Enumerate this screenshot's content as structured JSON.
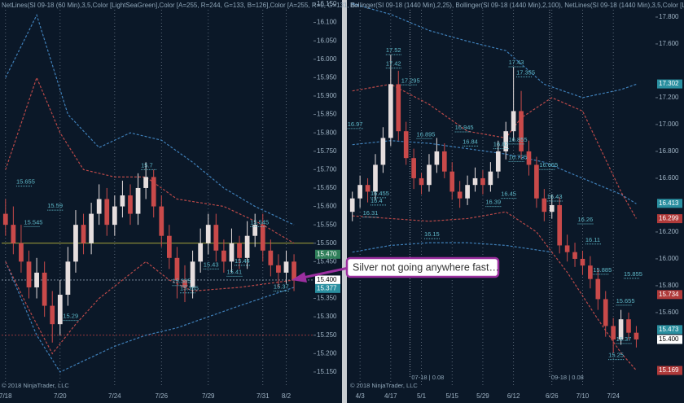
{
  "annotation": "Silver not going anywhere fast…",
  "chart_data": [
    {
      "type": "candlestick",
      "title": "NetLines(SI 09-18 (60 Min),3,5,Color [LightSeaGreen],Color [A=255, R=244, G=133, B=126],Color [A=255, R=0, G=131, B=",
      "copyright": "© 2018 NinjaTrader, LLC",
      "up_color": "#e6dede",
      "down_color": "#c94a4a",
      "xlim": [
        -0.5,
        39.5
      ],
      "ylim": [
        15.11,
        16.161
      ],
      "xticks": [
        {
          "value": 0,
          "label": "7/18"
        },
        {
          "value": 7,
          "label": "7/20"
        },
        {
          "value": 14,
          "label": "7/24"
        },
        {
          "value": 20,
          "label": "7/26"
        },
        {
          "value": 26,
          "label": "7/29"
        },
        {
          "value": 33,
          "label": "7/31"
        },
        {
          "value": 36,
          "label": "8/2"
        }
      ],
      "yticks": [
        {
          "value": 16.15,
          "label": "16.150"
        },
        {
          "value": 16.1,
          "label": "16.100"
        },
        {
          "value": 16.05,
          "label": "16.050"
        },
        {
          "value": 16,
          "label": "16.000"
        },
        {
          "value": 15.95,
          "label": "15.950"
        },
        {
          "value": 15.9,
          "label": "15.900"
        },
        {
          "value": 15.85,
          "label": "15.850"
        },
        {
          "value": 15.8,
          "label": "15.800"
        },
        {
          "value": 15.75,
          "label": "15.750"
        },
        {
          "value": 15.7,
          "label": "15.700"
        },
        {
          "value": 15.65,
          "label": "15.650"
        },
        {
          "value": 15.6,
          "label": "15.600"
        },
        {
          "value": 15.55,
          "label": "15.550"
        },
        {
          "value": 15.5,
          "label": "15.500"
        },
        {
          "value": 15.45,
          "label": "15.450"
        },
        {
          "value": 15.35,
          "label": "15.350"
        },
        {
          "value": 15.3,
          "label": "15.300"
        },
        {
          "value": 15.25,
          "label": "15.250"
        },
        {
          "value": 15.2,
          "label": "15.200"
        },
        {
          "value": 15.15,
          "label": "15.150"
        }
      ],
      "open": [
        15.58,
        15.55,
        15.5,
        15.45,
        15.38,
        15.42,
        15.33,
        15.28,
        15.36,
        15.45,
        15.55,
        15.5,
        15.58,
        15.62,
        15.55,
        15.6,
        15.63,
        15.58,
        15.65,
        15.68,
        15.6,
        15.52,
        15.46,
        15.4,
        15.38,
        15.45,
        15.5,
        15.55,
        15.48,
        15.45,
        15.5,
        15.46,
        15.52,
        15.55,
        15.48,
        15.44,
        15.42,
        15.45
      ],
      "high": [
        15.62,
        15.6,
        15.55,
        15.48,
        15.46,
        15.45,
        15.37,
        15.4,
        15.49,
        15.59,
        15.58,
        15.61,
        15.66,
        15.65,
        15.63,
        15.67,
        15.66,
        15.69,
        15.72,
        15.7,
        15.63,
        15.55,
        15.49,
        15.44,
        15.48,
        15.54,
        15.58,
        15.58,
        15.51,
        15.54,
        15.52,
        15.56,
        15.58,
        15.58,
        15.51,
        15.47,
        15.48,
        15.47
      ],
      "low": [
        15.52,
        15.47,
        15.42,
        15.35,
        15.35,
        15.3,
        15.23,
        15.25,
        15.33,
        15.42,
        15.47,
        15.47,
        15.55,
        15.52,
        15.52,
        15.57,
        15.55,
        15.55,
        15.62,
        15.57,
        15.49,
        15.43,
        15.35,
        15.34,
        15.35,
        15.42,
        15.47,
        15.45,
        15.42,
        15.42,
        15.43,
        15.43,
        15.49,
        15.45,
        15.41,
        15.38,
        15.39,
        15.37
      ],
      "close": [
        15.55,
        15.5,
        15.45,
        15.38,
        15.42,
        15.33,
        15.28,
        15.36,
        15.45,
        15.55,
        15.5,
        15.58,
        15.62,
        15.55,
        15.6,
        15.63,
        15.58,
        15.65,
        15.68,
        15.6,
        15.52,
        15.46,
        15.4,
        15.38,
        15.45,
        15.5,
        15.55,
        15.48,
        15.45,
        15.5,
        15.46,
        15.52,
        15.55,
        15.48,
        15.44,
        15.42,
        15.45,
        15.4
      ],
      "bands": [
        {
          "color": "#3f7fb8",
          "x": [
            0,
            4,
            8,
            12,
            16,
            20,
            24,
            28,
            32,
            37
          ],
          "values": [
            15.95,
            16.12,
            15.85,
            15.76,
            15.8,
            15.78,
            15.72,
            15.65,
            15.6,
            15.55
          ]
        },
        {
          "color": "#3f7fb8",
          "x": [
            0,
            4,
            7,
            10,
            14,
            18,
            22,
            26,
            30,
            37
          ],
          "values": [
            15.45,
            15.25,
            15.15,
            15.18,
            15.22,
            15.25,
            15.27,
            15.3,
            15.33,
            15.38
          ]
        },
        {
          "color": "#b84848",
          "x": [
            0,
            4,
            7,
            10,
            14,
            18,
            22,
            28,
            33,
            37
          ],
          "values": [
            15.7,
            15.95,
            15.8,
            15.7,
            15.68,
            15.68,
            15.62,
            15.6,
            15.55,
            15.5
          ]
        },
        {
          "color": "#b84848",
          "x": [
            0,
            3,
            6,
            9,
            12,
            18,
            21,
            24,
            30,
            37
          ],
          "values": [
            15.45,
            15.32,
            15.2,
            15.28,
            15.35,
            15.45,
            15.4,
            15.37,
            15.38,
            15.4
          ]
        }
      ],
      "reference_lines": [
        {
          "value": 15.5,
          "color": "#d8d040"
        },
        {
          "value": 15.25,
          "color": "#c04040"
        },
        {
          "value": 15.4,
          "color": "#8899aa"
        }
      ],
      "level_labels": [
        {
          "x": 18,
          "value": 15.7
        },
        {
          "x": 2,
          "value": 15.655
        },
        {
          "x": 6,
          "value": 15.59
        },
        {
          "x": 3,
          "value": 15.545
        },
        {
          "x": 30,
          "value": 15.44
        },
        {
          "x": 22,
          "value": 15.385
        },
        {
          "x": 23,
          "value": 15.365
        },
        {
          "x": 8,
          "value": 15.29
        },
        {
          "x": 26,
          "value": 15.43
        },
        {
          "x": 29,
          "value": 15.41
        },
        {
          "x": 35,
          "value": 15.37
        },
        {
          "x": 32,
          "value": 15.545
        }
      ],
      "price_labels": [
        {
          "value": 15.47,
          "label": "15.470",
          "color": "#2f7f5a",
          "text_color": "#ffffff"
        },
        {
          "value": 15.4,
          "label": "15.400",
          "color": "#ffffff",
          "text_color": "#000000"
        },
        {
          "value": 15.377,
          "label": "15.377",
          "color": "#2a8fa0",
          "text_color": "#ffffff"
        }
      ],
      "markers": []
    },
    {
      "type": "candlestick",
      "title": "Bollinger(SI 09-18 (1440 Min),2,25), Bollinger(SI 09-18 (1440 Min),2,100), NetLines(SI 09-18 (1440 Min),3,5,Color [Ligh",
      "copyright": "© 2018 NinjaTrader, LLC",
      "up_color": "#e6dede",
      "down_color": "#c94a4a",
      "xlim": [
        -0.5,
        39.5
      ],
      "ylim": [
        15.048,
        17.927
      ],
      "xticks": [
        {
          "value": 1,
          "label": "4/3"
        },
        {
          "value": 5,
          "label": "4/17"
        },
        {
          "value": 9,
          "label": "5/1"
        },
        {
          "value": 13,
          "label": "5/15"
        },
        {
          "value": 17,
          "label": "5/29"
        },
        {
          "value": 21,
          "label": "6/12"
        },
        {
          "value": 26,
          "label": "6/26"
        },
        {
          "value": 30,
          "label": "7/10"
        },
        {
          "value": 34,
          "label": "7/24"
        }
      ],
      "yticks": [
        {
          "value": 17.8,
          "label": "17.800"
        },
        {
          "value": 17.6,
          "label": "17.600"
        },
        {
          "value": 17.2,
          "label": "17.200"
        },
        {
          "value": 17,
          "label": "17.000"
        },
        {
          "value": 16.8,
          "label": "16.800"
        },
        {
          "value": 16.6,
          "label": "16.600"
        },
        {
          "value": 16.2,
          "label": "16.200"
        },
        {
          "value": 16,
          "label": "16.000"
        },
        {
          "value": 15.8,
          "label": "15.800"
        },
        {
          "value": 15.6,
          "label": "15.600"
        }
      ],
      "open": [
        16.35,
        16.45,
        16.55,
        16.5,
        16.7,
        16.9,
        17.3,
        16.95,
        16.75,
        16.6,
        16.55,
        16.7,
        16.8,
        16.65,
        16.5,
        16.45,
        16.55,
        16.6,
        16.55,
        16.65,
        16.8,
        16.95,
        17.1,
        16.8,
        16.7,
        16.45,
        16.35,
        16.4,
        16.1,
        16.05,
        16.0,
        15.95,
        15.85,
        15.7,
        15.5,
        15.4,
        15.55,
        15.45
      ],
      "high": [
        16.5,
        16.62,
        16.6,
        16.78,
        16.98,
        17.52,
        17.4,
        17.02,
        16.82,
        16.64,
        16.78,
        16.9,
        16.86,
        16.72,
        16.58,
        16.62,
        16.68,
        16.66,
        16.72,
        16.88,
        17.02,
        17.43,
        17.25,
        16.88,
        16.76,
        16.52,
        16.48,
        16.46,
        16.18,
        16.12,
        16.06,
        16.02,
        15.92,
        15.76,
        15.56,
        15.62,
        15.6,
        15.5
      ],
      "low": [
        16.28,
        16.38,
        16.42,
        16.44,
        16.64,
        16.84,
        16.88,
        16.7,
        16.52,
        16.48,
        16.5,
        16.64,
        16.6,
        16.44,
        16.38,
        16.4,
        16.5,
        16.48,
        16.5,
        16.6,
        16.74,
        16.88,
        16.74,
        16.62,
        16.38,
        16.28,
        16.3,
        16.04,
        15.98,
        15.94,
        15.88,
        15.78,
        15.62,
        15.42,
        15.3,
        15.36,
        15.4,
        15.34
      ],
      "close": [
        16.45,
        16.55,
        16.5,
        16.7,
        16.9,
        17.3,
        16.95,
        16.75,
        16.6,
        16.55,
        16.7,
        16.8,
        16.65,
        16.5,
        16.45,
        16.55,
        16.6,
        16.55,
        16.65,
        16.8,
        16.95,
        17.1,
        16.8,
        16.7,
        16.45,
        16.35,
        16.4,
        16.1,
        16.05,
        16.0,
        15.95,
        15.85,
        15.7,
        15.5,
        15.4,
        15.55,
        15.45,
        15.4
      ],
      "bands": [
        {
          "color": "#3f7fb8",
          "x": [
            0,
            5,
            10,
            15,
            20,
            25,
            30,
            35,
            37
          ],
          "values": [
            17.9,
            17.82,
            17.7,
            17.62,
            17.55,
            17.3,
            17.2,
            17.26,
            17.3
          ]
        },
        {
          "color": "#3f7fb8",
          "x": [
            0,
            5,
            10,
            15,
            20,
            25,
            30,
            35,
            37
          ],
          "values": [
            16.85,
            16.88,
            16.86,
            16.82,
            16.78,
            16.72,
            16.6,
            16.48,
            16.41
          ]
        },
        {
          "color": "#3f7fb8",
          "x": [
            0,
            5,
            10,
            15,
            20,
            26
          ],
          "values": [
            16.05,
            16.1,
            16.12,
            16.12,
            16.1,
            16.05
          ]
        },
        {
          "color": "#b84848",
          "x": [
            0,
            5,
            10,
            15,
            20,
            22,
            26,
            30,
            35,
            37
          ],
          "values": [
            17.25,
            17.3,
            17.15,
            16.95,
            16.9,
            17.05,
            17.2,
            17.1,
            16.5,
            16.3
          ]
        },
        {
          "color": "#b84848",
          "x": [
            0,
            5,
            10,
            15,
            20,
            24,
            28,
            32,
            35,
            37
          ],
          "values": [
            16.32,
            16.3,
            16.28,
            16.3,
            16.35,
            16.2,
            15.9,
            15.55,
            15.3,
            15.17
          ]
        }
      ],
      "reference_lines": [],
      "level_labels": [
        {
          "x": 5,
          "value": 17.52
        },
        {
          "x": 5,
          "value": 17.42
        },
        {
          "x": 7,
          "value": 17.295
        },
        {
          "x": 0,
          "value": 16.97
        },
        {
          "x": 9,
          "value": 16.895
        },
        {
          "x": 14,
          "value": 16.945
        },
        {
          "x": 15,
          "value": 16.84
        },
        {
          "x": 19,
          "value": 16.82
        },
        {
          "x": 21,
          "value": 16.855
        },
        {
          "x": 21,
          "value": 16.725
        },
        {
          "x": 21,
          "value": 17.43
        },
        {
          "x": 22,
          "value": 17.355
        },
        {
          "x": 25,
          "value": 16.665
        },
        {
          "x": 26,
          "value": 16.43
        },
        {
          "x": 30,
          "value": 16.26
        },
        {
          "x": 31,
          "value": 16.11
        },
        {
          "x": 32,
          "value": 15.885
        },
        {
          "x": 35,
          "value": 15.655
        },
        {
          "x": 35,
          "value": 15.37
        },
        {
          "x": 34,
          "value": 15.25
        },
        {
          "x": 3,
          "value": 16.455
        },
        {
          "x": 3,
          "value": 16.4
        },
        {
          "x": 2,
          "value": 16.31
        },
        {
          "x": 10,
          "value": 16.15
        },
        {
          "x": 18,
          "value": 16.39
        },
        {
          "x": 20,
          "value": 16.45
        },
        {
          "x": 36,
          "value": 15.855
        }
      ],
      "price_labels": [
        {
          "value": 17.302,
          "label": "17.302",
          "color": "#2a8fa0",
          "text_color": "#ffffff"
        },
        {
          "value": 16.413,
          "label": "16.413",
          "color": "#2a8fa0",
          "text_color": "#ffffff"
        },
        {
          "value": 16.299,
          "label": "16.299",
          "color": "#b03a3a",
          "text_color": "#ffffff"
        },
        {
          "value": 15.734,
          "label": "15.734",
          "color": "#b03a3a",
          "text_color": "#ffffff"
        },
        {
          "value": 15.473,
          "label": "15.473",
          "color": "#2a8fa0",
          "text_color": "#ffffff"
        },
        {
          "value": 15.4,
          "label": "15.400",
          "color": "#ffffff",
          "text_color": "#000000"
        },
        {
          "value": 15.169,
          "label": "15.169",
          "color": "#b03a3a",
          "text_color": "#ffffff"
        }
      ],
      "markers": [
        {
          "x": 7.5,
          "label": "07-18 | 0.08"
        },
        {
          "x": 25.7,
          "label": "09-18 | 0.08"
        }
      ]
    }
  ]
}
